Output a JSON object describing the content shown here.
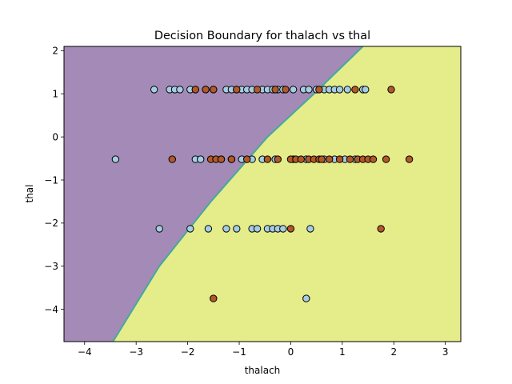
{
  "chart_data": {
    "type": "scatter",
    "title": "Decision Boundary for thalach vs thal",
    "xlabel": "thalach",
    "ylabel": "thal",
    "xlim": [
      -4.4,
      3.3
    ],
    "ylim": [
      -4.75,
      2.1
    ],
    "xticks": [
      -4,
      -3,
      -2,
      -1,
      0,
      1,
      2,
      3
    ],
    "yticks": [
      -4,
      -3,
      -2,
      -1,
      0,
      1,
      2
    ],
    "grid": false,
    "legend": "none",
    "colors": {
      "region_class0": "#a48ab6",
      "region_class1": "#e5ec8a",
      "boundary": "#43a9a0",
      "point_class0": "#a6cee3",
      "point_class1": "#b15928",
      "point_edge": "#000000"
    },
    "decision_boundary": {
      "points": [
        [
          -3.45,
          -4.75
        ],
        [
          -2.55,
          -3.0
        ],
        [
          -1.55,
          -1.5
        ],
        [
          -0.45,
          0.0
        ],
        [
          0.45,
          1.0
        ],
        [
          1.4,
          2.1
        ]
      ]
    },
    "series": [
      {
        "class": 0,
        "points": [
          [
            -2.65,
            1.1
          ],
          [
            -2.35,
            1.1
          ],
          [
            -2.25,
            1.1
          ],
          [
            -2.15,
            1.1
          ],
          [
            -1.95,
            1.1
          ],
          [
            -1.85,
            1.1
          ],
          [
            -1.65,
            1.1
          ],
          [
            -1.5,
            1.1
          ],
          [
            -1.25,
            1.1
          ],
          [
            -1.15,
            1.1
          ],
          [
            -1.05,
            1.1
          ],
          [
            -0.95,
            1.1
          ],
          [
            -0.85,
            1.1
          ],
          [
            -0.75,
            1.1
          ],
          [
            -0.55,
            1.1
          ],
          [
            -0.45,
            1.1
          ],
          [
            -0.35,
            1.1
          ],
          [
            -0.25,
            1.1
          ],
          [
            -0.15,
            1.1
          ],
          [
            0.05,
            1.1
          ],
          [
            0.25,
            1.1
          ],
          [
            0.35,
            1.1
          ],
          [
            0.5,
            1.1
          ],
          [
            0.65,
            1.1
          ],
          [
            0.75,
            1.1
          ],
          [
            0.85,
            1.1
          ],
          [
            0.95,
            1.1
          ],
          [
            1.1,
            1.1
          ],
          [
            1.4,
            1.1
          ],
          [
            1.45,
            1.1
          ],
          [
            -3.4,
            -0.52
          ],
          [
            -1.85,
            -0.52
          ],
          [
            -1.75,
            -0.52
          ],
          [
            -1.35,
            -0.52
          ],
          [
            -1.15,
            -0.52
          ],
          [
            -0.95,
            -0.52
          ],
          [
            -0.75,
            -0.52
          ],
          [
            -0.55,
            -0.52
          ],
          [
            -0.3,
            -0.52
          ],
          [
            0.05,
            -0.52
          ],
          [
            0.3,
            -0.52
          ],
          [
            0.65,
            -0.52
          ],
          [
            0.85,
            -0.52
          ],
          [
            1.05,
            -0.52
          ],
          [
            1.25,
            -0.52
          ],
          [
            -2.55,
            -2.13
          ],
          [
            -1.95,
            -2.13
          ],
          [
            -1.6,
            -2.13
          ],
          [
            -1.25,
            -2.13
          ],
          [
            -1.05,
            -2.13
          ],
          [
            -0.75,
            -2.13
          ],
          [
            -0.65,
            -2.13
          ],
          [
            -0.45,
            -2.13
          ],
          [
            -0.35,
            -2.13
          ],
          [
            -0.25,
            -2.13
          ],
          [
            -0.15,
            -2.13
          ],
          [
            0.38,
            -2.13
          ],
          [
            0.3,
            -3.75
          ]
        ]
      },
      {
        "class": 1,
        "points": [
          [
            -1.85,
            1.1
          ],
          [
            -1.65,
            1.1
          ],
          [
            -1.5,
            1.1
          ],
          [
            -1.05,
            1.1
          ],
          [
            -0.65,
            1.1
          ],
          [
            -0.3,
            1.1
          ],
          [
            -0.1,
            1.1
          ],
          [
            0.55,
            1.1
          ],
          [
            1.25,
            1.1
          ],
          [
            1.95,
            1.1
          ],
          [
            -2.3,
            -0.52
          ],
          [
            -1.55,
            -0.52
          ],
          [
            -1.45,
            -0.52
          ],
          [
            -1.35,
            -0.52
          ],
          [
            -1.15,
            -0.52
          ],
          [
            -0.85,
            -0.52
          ],
          [
            -0.45,
            -0.52
          ],
          [
            -0.25,
            -0.52
          ],
          [
            0.0,
            -0.52
          ],
          [
            0.1,
            -0.52
          ],
          [
            0.2,
            -0.52
          ],
          [
            0.35,
            -0.52
          ],
          [
            0.45,
            -0.52
          ],
          [
            0.55,
            -0.52
          ],
          [
            0.6,
            -0.52
          ],
          [
            0.75,
            -0.52
          ],
          [
            0.95,
            -0.52
          ],
          [
            1.15,
            -0.52
          ],
          [
            1.3,
            -0.52
          ],
          [
            1.4,
            -0.52
          ],
          [
            1.5,
            -0.52
          ],
          [
            1.6,
            -0.52
          ],
          [
            1.85,
            -0.52
          ],
          [
            2.3,
            -0.52
          ],
          [
            0.0,
            -2.13
          ],
          [
            1.75,
            -2.13
          ],
          [
            -1.5,
            -3.75
          ]
        ]
      }
    ]
  }
}
